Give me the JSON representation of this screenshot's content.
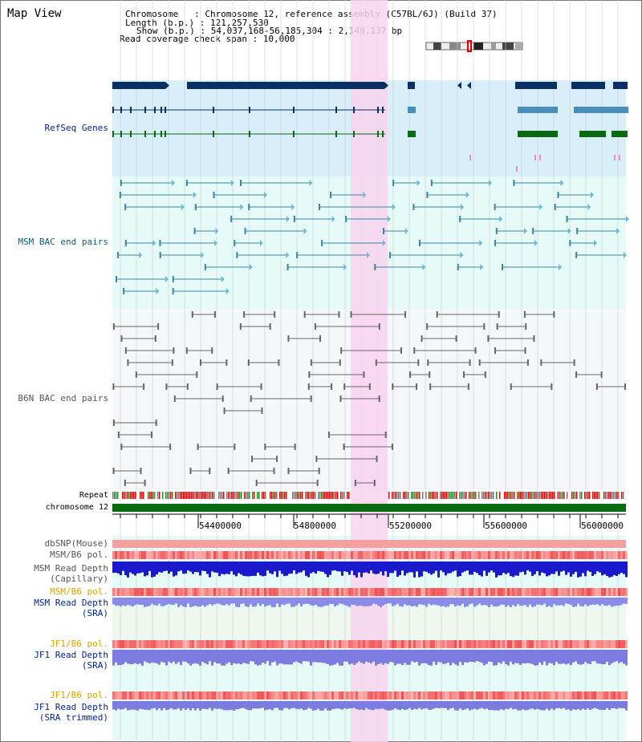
{
  "header": {
    "title": "Map View",
    "lines": [
      "Chromosome   : Chromosome 12, reference assembly (C57BL/6J) (Build 37)",
      "Length (b.p.) : 121,257,530",
      "Show (b.p.) : 54,037,168-56,185,304 : 2,148,137 bp",
      "Read coverage check span : 10,000"
    ]
  },
  "tracks": {
    "refseq": "RefSeq Genes",
    "msm_bac": "MSM BAC end pairs",
    "b6n_bac": "B6N BAC end pairs",
    "repeat": "Repeat",
    "chromosome": "chromosome 12",
    "dbsnp": "dbSNP(Mouse)",
    "msm_b6_pol_1": "MSM/B6 pol.",
    "msm_depth_cap_1": "MSM Read Depth",
    "msm_depth_cap_2": "(Capillary)",
    "msm_b6_pol_2": "MSM/B6 pol.",
    "msm_depth_sra_1": "MSM Read Depth",
    "msm_depth_sra_2": "(SRA)",
    "jf1_b6_pol_1": "JF1/B6 pol.",
    "jf1_depth_sra_1": "JF1 Read Depth",
    "jf1_depth_sra_2": "(SRA)",
    "jf1_b6_pol_2": "JF1/B6 pol.",
    "jf1_depth_trim_1": "JF1 Read Depth",
    "jf1_depth_trim_2": "(SRA trimmed)"
  },
  "axis": {
    "ticks": [
      "54400000",
      "54800000",
      "55200000",
      "55600000",
      "56000000"
    ]
  },
  "colors": {
    "refseq_bg": "#d8eef8",
    "msm_bac_bg": "#e6fbf8",
    "b6n_bac_bg": "#f5f8fa",
    "highlight": "#f8d4ee",
    "gene_dark": "#0b2e63",
    "gene_mid": "#4a8db8",
    "gene_green": "#0a6a12",
    "chromosome": "#0a6a12",
    "label_blue": "#00239c",
    "label_teal": "#005f7a",
    "label_gray": "#555555",
    "label_orange": "#e0a000"
  }
}
